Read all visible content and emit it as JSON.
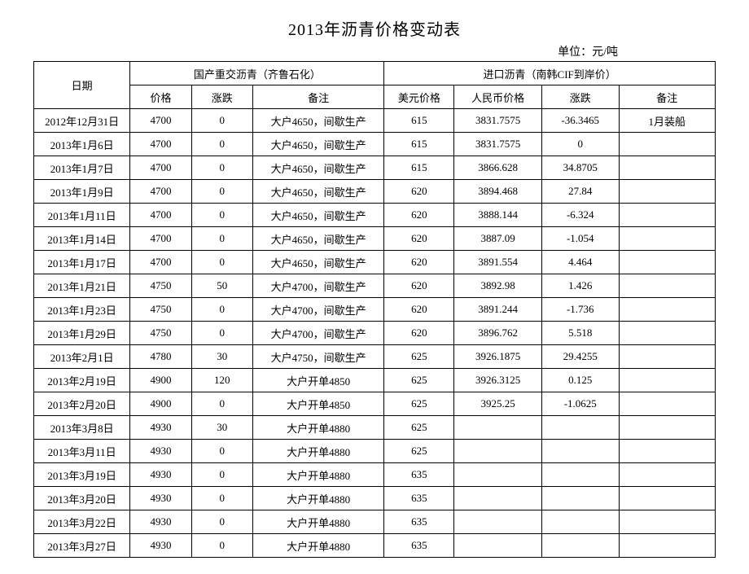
{
  "title": "2013年沥青价格变动表",
  "unit": "单位：元/吨",
  "headers": {
    "date": "日期",
    "domestic_group": "国产重交沥青（齐鲁石化）",
    "import_group": "进口沥青（南韩CIF到岸价）",
    "price": "价格",
    "change": "涨跌",
    "remark": "备注",
    "usd_price": "美元价格",
    "rmb_price": "人民币价格",
    "i_change": "涨跌",
    "i_remark": "备注"
  },
  "rows": [
    {
      "date": "2012年12月31日",
      "price": "4700",
      "change": "0",
      "remark": "大户4650，间歇生产",
      "usd": "615",
      "rmb": "3831.7575",
      "ichg": "-36.3465",
      "irem": "1月装船"
    },
    {
      "date": "2013年1月6日",
      "price": "4700",
      "change": "0",
      "remark": "大户4650，间歇生产",
      "usd": "615",
      "rmb": "3831.7575",
      "ichg": "0",
      "irem": ""
    },
    {
      "date": "2013年1月7日",
      "price": "4700",
      "change": "0",
      "remark": "大户4650，间歇生产",
      "usd": "615",
      "rmb": "3866.628",
      "ichg": "34.8705",
      "irem": ""
    },
    {
      "date": "2013年1月9日",
      "price": "4700",
      "change": "0",
      "remark": "大户4650，间歇生产",
      "usd": "620",
      "rmb": "3894.468",
      "ichg": "27.84",
      "irem": ""
    },
    {
      "date": "2013年1月11日",
      "price": "4700",
      "change": "0",
      "remark": "大户4650，间歇生产",
      "usd": "620",
      "rmb": "3888.144",
      "ichg": "-6.324",
      "irem": ""
    },
    {
      "date": "2013年1月14日",
      "price": "4700",
      "change": "0",
      "remark": "大户4650，间歇生产",
      "usd": "620",
      "rmb": "3887.09",
      "ichg": "-1.054",
      "irem": ""
    },
    {
      "date": "2013年1月17日",
      "price": "4700",
      "change": "0",
      "remark": "大户4650，间歇生产",
      "usd": "620",
      "rmb": "3891.554",
      "ichg": "4.464",
      "irem": ""
    },
    {
      "date": "2013年1月21日",
      "price": "4750",
      "change": "50",
      "remark": "大户4700，间歇生产",
      "usd": "620",
      "rmb": "3892.98",
      "ichg": "1.426",
      "irem": ""
    },
    {
      "date": "2013年1月23日",
      "price": "4750",
      "change": "0",
      "remark": "大户4700，间歇生产",
      "usd": "620",
      "rmb": "3891.244",
      "ichg": "-1.736",
      "irem": ""
    },
    {
      "date": "2013年1月29日",
      "price": "4750",
      "change": "0",
      "remark": "大户4700，间歇生产",
      "usd": "620",
      "rmb": "3896.762",
      "ichg": "5.518",
      "irem": ""
    },
    {
      "date": "2013年2月1日",
      "price": "4780",
      "change": "30",
      "remark": "大户4750，间歇生产",
      "usd": "625",
      "rmb": "3926.1875",
      "ichg": "29.4255",
      "irem": ""
    },
    {
      "date": "2013年2月19日",
      "price": "4900",
      "change": "120",
      "remark": "大户开单4850",
      "usd": "625",
      "rmb": "3926.3125",
      "ichg": "0.125",
      "irem": ""
    },
    {
      "date": "2013年2月20日",
      "price": "4900",
      "change": "0",
      "remark": "大户开单4850",
      "usd": "625",
      "rmb": "3925.25",
      "ichg": "-1.0625",
      "irem": ""
    },
    {
      "date": "2013年3月8日",
      "price": "4930",
      "change": "30",
      "remark": "大户开单4880",
      "usd": "625",
      "rmb": "",
      "ichg": "",
      "irem": ""
    },
    {
      "date": "2013年3月11日",
      "price": "4930",
      "change": "0",
      "remark": "大户开单4880",
      "usd": "625",
      "rmb": "",
      "ichg": "",
      "irem": ""
    },
    {
      "date": "2013年3月19日",
      "price": "4930",
      "change": "0",
      "remark": "大户开单4880",
      "usd": "635",
      "rmb": "",
      "ichg": "",
      "irem": ""
    },
    {
      "date": "2013年3月20日",
      "price": "4930",
      "change": "0",
      "remark": "大户开单4880",
      "usd": "635",
      "rmb": "",
      "ichg": "",
      "irem": ""
    },
    {
      "date": "2013年3月22日",
      "price": "4930",
      "change": "0",
      "remark": "大户开单4880",
      "usd": "635",
      "rmb": "",
      "ichg": "",
      "irem": ""
    },
    {
      "date": "2013年3月27日",
      "price": "4930",
      "change": "0",
      "remark": "大户开单4880",
      "usd": "635",
      "rmb": "",
      "ichg": "",
      "irem": ""
    }
  ],
  "style": {
    "border_color": "#000000",
    "background_color": "#ffffff",
    "text_color": "#000000",
    "title_fontsize": 20,
    "cell_fontsize": 13,
    "font_family": "SimSun"
  }
}
